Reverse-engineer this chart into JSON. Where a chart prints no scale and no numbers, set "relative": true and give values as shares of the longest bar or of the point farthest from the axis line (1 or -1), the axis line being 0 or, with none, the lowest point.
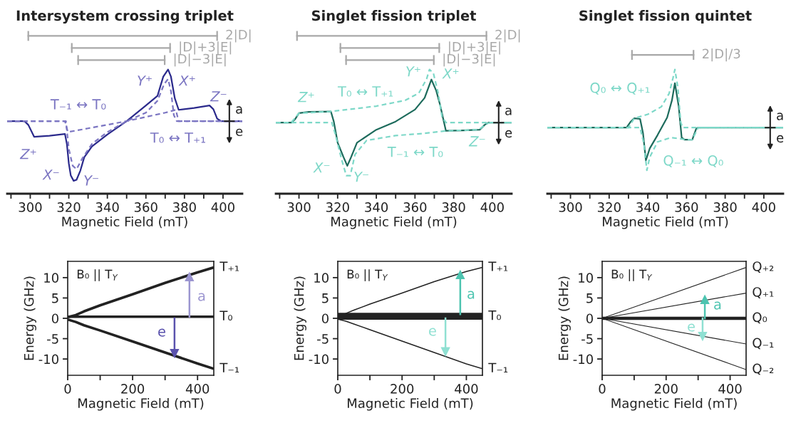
{
  "chart_data": [
    {
      "type": "line",
      "relative": true,
      "title": "Intersystem crossing triplet",
      "xlabel": "Magnetic Field (mT)",
      "xlim": [
        288,
        410
      ],
      "xticks": [
        {
          "value": 290,
          "label": null
        },
        300,
        {
          "value": 310,
          "label": null
        },
        320,
        {
          "value": 330,
          "label": null
        },
        340,
        {
          "value": 350,
          "label": null
        },
        360,
        {
          "value": 370,
          "label": null
        },
        380,
        {
          "value": 390,
          "label": null
        },
        400
      ],
      "tick_labels": "x",
      "series": [
        {
          "color": "#2b2a8c",
          "x": [
            288,
            297,
            299,
            302,
            310,
            318,
            319,
            320,
            321,
            322.5,
            324,
            326,
            328,
            332,
            340,
            350,
            360,
            366,
            369,
            371.5,
            373,
            375,
            377,
            385,
            393,
            395,
            397,
            399,
            410
          ],
          "values": [
            0.584,
            0.584,
            0.554,
            0.458,
            0.467,
            0.481,
            0.4,
            0.244,
            0.148,
            0.104,
            0.112,
            0.186,
            0.293,
            0.38,
            0.477,
            0.584,
            0.71,
            0.787,
            0.942,
            1,
            0.942,
            0.767,
            0.675,
            0.69,
            0.71,
            0.68,
            0.603,
            0.584,
            0.584
          ]
        },
        {
          "color": "#7b75c2",
          "line_style": "dashed",
          "x": [
            288,
            318,
            319.5,
            330,
            350,
            370,
            375.5,
            377,
            410
          ],
          "values": [
            0.584,
            0.584,
            0.496,
            0.526,
            0.584,
            0.652,
            0.675,
            0.584,
            0.584
          ]
        },
        {
          "color": "#7b75c2",
          "line_style": "dashed",
          "x": [
            288,
            318.5,
            320,
            322,
            324,
            327,
            332,
            340,
            350,
            360,
            366,
            369.5,
            371.5,
            373,
            374.5,
            376,
            410
          ],
          "values": [
            0.584,
            0.584,
            0.361,
            0.226,
            0.197,
            0.284,
            0.401,
            0.496,
            0.584,
            0.652,
            0.748,
            0.884,
            0.923,
            0.826,
            0.632,
            0.584,
            0.584
          ]
        }
      ],
      "annotations": [
        "a",
        "e",
        "Z⁺",
        "X⁻",
        "Y⁻",
        "Y⁺",
        "X⁺",
        "Z⁻",
        "T₋₁ ↔ T₀",
        "T₀ ↔ T₊₁",
        "2|D|",
        "|D|+3|E|",
        "|D|−3|E|"
      ]
    },
    {
      "type": "line",
      "relative": true,
      "title": "Singlet fission triplet",
      "xlabel": "Magnetic Field (mT)",
      "xlim": [
        288,
        410
      ],
      "xticks": [
        {
          "value": 290,
          "label": null
        },
        300,
        {
          "value": 310,
          "label": null
        },
        320,
        {
          "value": 330,
          "label": null
        },
        340,
        {
          "value": 350,
          "label": null
        },
        360,
        {
          "value": 370,
          "label": null
        },
        380,
        {
          "value": 390,
          "label": null
        },
        400
      ],
      "tick_labels": "x",
      "series": [
        {
          "color": "#1d6b5c",
          "x": [
            288,
            296,
            298,
            300,
            305,
            316.5,
            318,
            320,
            323,
            325,
            327,
            330,
            340,
            350,
            360,
            365,
            368.5,
            371,
            373,
            376,
            385,
            393.5,
            396,
            398,
            410
          ],
          "values": [
            0.572,
            0.572,
            0.6,
            0.648,
            0.658,
            0.662,
            0.581,
            0.411,
            0.296,
            0.224,
            0.296,
            0.411,
            0.515,
            0.581,
            0.677,
            0.772,
            0.919,
            0.829,
            0.714,
            0.506,
            0.51,
            0.515,
            0.554,
            0.572,
            0.572
          ]
        },
        {
          "color": "#7dd8c8",
          "line_style": "dashed",
          "x": [
            288,
            296,
            300,
            316,
            325,
            340,
            355,
            362,
            366,
            367.5,
            369.5,
            372,
            374,
            376,
            410
          ],
          "values": [
            0.572,
            0.572,
            0.648,
            0.662,
            0.677,
            0.705,
            0.752,
            0.81,
            0.923,
            1,
            0.971,
            0.81,
            0.619,
            0.572,
            0.572
          ]
        },
        {
          "color": "#7dd8c8",
          "line_style": "dashed",
          "x": [
            288,
            317,
            319,
            322,
            324.5,
            326.5,
            329,
            335,
            350,
            365,
            376,
            393,
            397,
            399,
            410
          ],
          "values": [
            0.572,
            0.572,
            0.468,
            0.278,
            0.145,
            0.145,
            0.316,
            0.429,
            0.468,
            0.486,
            0.506,
            0.515,
            0.563,
            0.572,
            0.572
          ]
        }
      ],
      "annotations": [
        "a",
        "e",
        "Z⁺",
        "T₀ ↔ T₊₁",
        "Y⁺",
        "X⁺",
        "Z⁻",
        "T₋₁ ↔ T₀",
        "X⁻",
        "Y⁻",
        "2|D|",
        "|D|+3|E|",
        "|D|−3|E|"
      ]
    },
    {
      "type": "line",
      "relative": true,
      "title": "Singlet fission quintet",
      "xlabel": "Magnetic Field (mT)",
      "xlim": [
        288,
        410
      ],
      "xticks": [
        {
          "value": 290,
          "label": null
        },
        300,
        {
          "value": 310,
          "label": null
        },
        320,
        {
          "value": 330,
          "label": null
        },
        340,
        {
          "value": 350,
          "label": null
        },
        360,
        {
          "value": 370,
          "label": null
        },
        380,
        {
          "value": 390,
          "label": null
        },
        400
      ],
      "tick_labels": "x",
      "series": [
        {
          "color": "#1d6b5c",
          "x": [
            288,
            329,
            331,
            333,
            336,
            337.5,
            339,
            341,
            345,
            350,
            352.5,
            354,
            356,
            357.5,
            359,
            363,
            365,
            366,
            410
          ],
          "values": [
            0.532,
            0.532,
            0.577,
            0.607,
            0.602,
            0.489,
            0.268,
            0.365,
            0.471,
            0.613,
            0.753,
            0.89,
            0.7,
            0.452,
            0.435,
            0.435,
            0.523,
            0.532,
            0.532
          ]
        },
        {
          "color": "#7dd8c8",
          "line_style": "dashed",
          "x": [
            288,
            330,
            333,
            340,
            347,
            351,
            353,
            354,
            355.5,
            357,
            358,
            410
          ],
          "values": [
            0.532,
            0.532,
            0.607,
            0.639,
            0.7,
            0.806,
            0.93,
            1,
            0.859,
            0.577,
            0.532,
            0.532
          ]
        },
        {
          "color": "#7dd8c8",
          "line_style": "dashed",
          "x": [
            288,
            336,
            338,
            339.5,
            341,
            345,
            352,
            360,
            363,
            366,
            410
          ],
          "values": [
            0.532,
            0.532,
            0.4,
            0.188,
            0.294,
            0.417,
            0.452,
            0.435,
            0.435,
            0.532,
            0.532
          ]
        }
      ],
      "annotations": [
        "a",
        "e",
        "Q₀ ↔ Q₊₁",
        "Q₋₁ ↔ Q₀",
        "2|D|/3"
      ]
    },
    {
      "type": "line",
      "xlabel": "Magnetic Field (mT)",
      "ylabel": "Energy (GHz)",
      "xlim": [
        0,
        450
      ],
      "ylim": [
        -14,
        14
      ],
      "xticks": [
        0,
        {
          "value": 100,
          "label": null
        },
        200,
        {
          "value": 300,
          "label": null
        },
        400
      ],
      "yticks": [
        -10,
        -5,
        0,
        5,
        10
      ],
      "series": [
        {
          "name": "T₊₁",
          "color": "#222222",
          "x": [
            0,
            25,
            50,
            100,
            200,
            300,
            400,
            450
          ],
          "values": [
            0.3,
            0.8,
            1.7,
            3.2,
            5.9,
            8.7,
            11.3,
            12.5
          ]
        },
        {
          "name": "T₀",
          "color": "#222222",
          "x": [
            0,
            450
          ],
          "values": [
            0.4,
            0.4
          ]
        },
        {
          "name": "T₋₁",
          "color": "#222222",
          "x": [
            0,
            25,
            50,
            100,
            200,
            300,
            400,
            450
          ],
          "values": [
            -0.3,
            -0.9,
            -1.7,
            -3.0,
            -5.7,
            -8.4,
            -11.1,
            -12.4
          ]
        },
        {
          "color": "#9b95d0",
          "marker": "triangle",
          "x": [
            375,
            375
          ],
          "values": [
            0.4,
            10.2
          ]
        },
        {
          "color": "#5a52ad",
          "marker": "triangle",
          "x": [
            329,
            329
          ],
          "values": [
            0,
            -8.6
          ]
        }
      ],
      "annotations": [
        "B₀ || T$_{Y}$",
        "a",
        "e"
      ]
    },
    {
      "type": "line",
      "xlabel": "Magnetic Field (mT)",
      "ylabel": "Energy (GHz)",
      "xlim": [
        0,
        450
      ],
      "ylim": [
        -14,
        14
      ],
      "xticks": [
        0,
        {
          "value": 100,
          "label": null
        },
        200,
        {
          "value": 300,
          "label": null
        },
        400
      ],
      "yticks": [
        -10,
        -5,
        0,
        5,
        10
      ],
      "series": [
        {
          "name": "T₊₁",
          "color": "#222222",
          "x": [
            0,
            25,
            50,
            100,
            200,
            300,
            400,
            450
          ],
          "values": [
            0.5,
            1.2,
            2.0,
            3.5,
            6.2,
            9.0,
            11.5,
            12.5
          ]
        },
        {
          "name": "T₀",
          "color": "#222222",
          "x": [
            0,
            450
          ],
          "values": [
            0.5,
            0.5
          ]
        },
        {
          "name": "T₋₁",
          "color": "#222222",
          "x": [
            0,
            25,
            50,
            100,
            200,
            300,
            400,
            450
          ],
          "values": [
            -0.2,
            -0.7,
            -1.4,
            -2.8,
            -5.6,
            -8.4,
            -11.2,
            -12.4
          ]
        },
        {
          "color": "#4dc4b0",
          "marker": "triangle",
          "x": [
            381,
            381
          ],
          "values": [
            1.0,
            10.7
          ]
        },
        {
          "color": "#8fe0d2",
          "marker": "triangle",
          "x": [
            335,
            335
          ],
          "values": [
            0,
            -8.2
          ]
        }
      ],
      "annotations": [
        "B₀ || T$_{Y}$",
        "a",
        "e"
      ]
    },
    {
      "type": "line",
      "xlabel": "Magnetic Field (mT)",
      "ylabel": "Energy (GHz)",
      "xlim": [
        0,
        450
      ],
      "ylim": [
        -14,
        14
      ],
      "xticks": [
        0,
        {
          "value": 100,
          "label": null
        },
        200,
        {
          "value": 300,
          "label": null
        },
        400
      ],
      "yticks": [
        -10,
        -5,
        0,
        5,
        10
      ],
      "series": [
        {
          "name": "Q₊₂",
          "color": "#222222",
          "x": [
            0,
            450
          ],
          "values": [
            0,
            12.5
          ]
        },
        {
          "name": "Q₊₁",
          "color": "#222222",
          "x": [
            0,
            450
          ],
          "values": [
            0,
            6.2
          ]
        },
        {
          "name": "Q₀",
          "color": "#222222",
          "x": [
            0,
            450
          ],
          "values": [
            0,
            0
          ]
        },
        {
          "name": "Q₋₁",
          "color": "#222222",
          "x": [
            0,
            450
          ],
          "values": [
            0,
            -6.3
          ]
        },
        {
          "name": "Q₋₂",
          "color": "#222222",
          "x": [
            0,
            450
          ],
          "values": [
            0,
            -12.6
          ]
        },
        {
          "color": "#4dc4b0",
          "marker": "triangle",
          "x": [
            321,
            321
          ],
          "values": [
            0,
            4.6
          ]
        },
        {
          "color": "#8fe0d2",
          "marker": "triangle",
          "x": [
            314,
            314
          ],
          "values": [
            0,
            -4.4
          ]
        }
      ],
      "annotations": [
        "B₀ || T$_{Y}$",
        "a",
        "e"
      ]
    }
  ]
}
